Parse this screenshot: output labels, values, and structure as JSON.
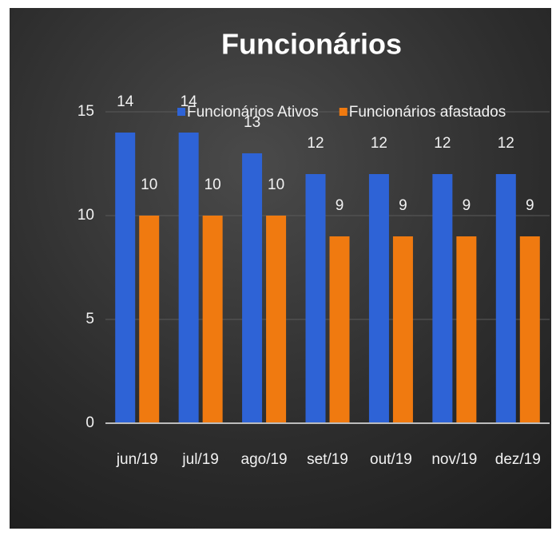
{
  "chart_data": {
    "type": "bar",
    "title": "Funcionários",
    "categories": [
      "jun/19",
      "jul/19",
      "ago/19",
      "set/19",
      "out/19",
      "nov/19",
      "dez/19"
    ],
    "series": [
      {
        "name": "Funcionários Ativos",
        "color": "#2e63d6",
        "values": [
          14,
          14,
          13,
          12,
          12,
          12,
          12
        ]
      },
      {
        "name": "Funcionários afastados",
        "color": "#f07a10",
        "values": [
          10,
          10,
          10,
          9,
          9,
          9,
          9
        ]
      }
    ],
    "ylim": [
      0,
      15
    ],
    "yticks": [
      0,
      5,
      10,
      15
    ],
    "grid": true,
    "legend": "top"
  }
}
